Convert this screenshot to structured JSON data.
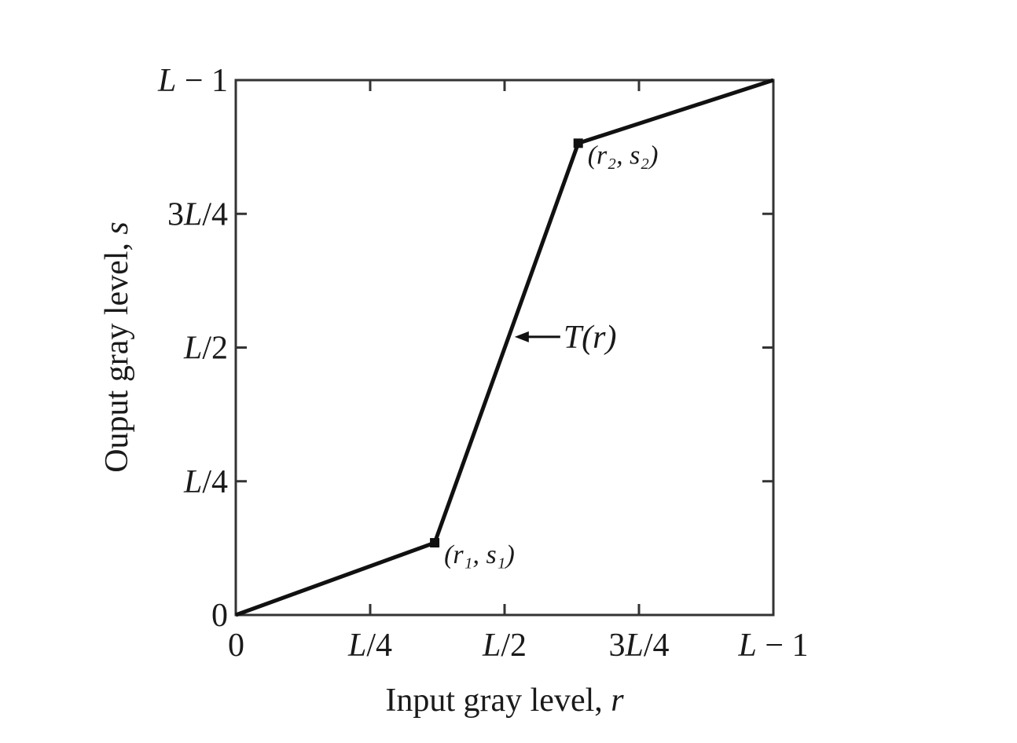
{
  "chart_data": {
    "type": "line",
    "xlabel": {
      "text": "Input gray level, ",
      "var": "r"
    },
    "ylabel": {
      "text": "Ouput gray level, ",
      "var": "s"
    },
    "xlim": [
      0,
      1
    ],
    "ylim": [
      0,
      1
    ],
    "x_ticks": [
      {
        "value": 0,
        "label": "0"
      },
      {
        "value": 0.25,
        "label": "L/4"
      },
      {
        "value": 0.5,
        "label": "L/2"
      },
      {
        "value": 0.75,
        "label": "3L/4"
      },
      {
        "value": 1,
        "label": "L − 1"
      }
    ],
    "y_ticks": [
      {
        "value": 0,
        "label": "0"
      },
      {
        "value": 0.25,
        "label": "L/4"
      },
      {
        "value": 0.5,
        "label": "L/2"
      },
      {
        "value": 0.75,
        "label": "3L/4"
      },
      {
        "value": 1,
        "label": "L − 1"
      }
    ],
    "series": [
      {
        "points": [
          {
            "x": 0,
            "y": 0
          },
          {
            "x": 0.37,
            "y": 0.135
          },
          {
            "x": 0.637,
            "y": 0.882
          },
          {
            "x": 1,
            "y": 1
          }
        ]
      }
    ],
    "control_points": [
      {
        "x": 0.37,
        "y": 0.135,
        "label": "(r₁, s₁)"
      },
      {
        "x": 0.637,
        "y": 0.882,
        "label": "(r₂, s₂)"
      }
    ],
    "annotations": [
      {
        "text": "T(r)",
        "arrow_to": {
          "x": 0.51,
          "y": 0.52
        }
      }
    ],
    "grid": false
  },
  "colors": {
    "line": "#111111",
    "axis": "#333333",
    "background": "#ffffff"
  }
}
